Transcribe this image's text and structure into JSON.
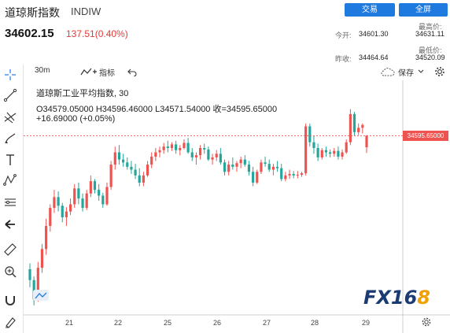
{
  "header": {
    "name": "道琼斯指数",
    "code": "INDIW",
    "price": "34602.15",
    "change": "137.51(0.40%)",
    "buttons": {
      "trade": "交易",
      "fullscreen": "全屏"
    },
    "stats": {
      "open_label": "今开:",
      "open_value": "34601.30",
      "prev_close_label": "昨收:",
      "prev_close_value": "34464.64",
      "high_label": "最高价:",
      "high_value": "34631.11",
      "low_label": "最低价:",
      "low_value": "34520.09"
    }
  },
  "toolbar": {
    "interval": "30m",
    "indicators_label": "指标",
    "save_label": "保存"
  },
  "chart_data": {
    "type": "candlestick",
    "title": "道琼斯工业平均指数, 30",
    "ohlc_line": "O34579.05000  H34596.46000  L34571.54000  收=34595.65000",
    "change_line": "+16.69000 (+0.05%)",
    "last_price_label": "34595.65000",
    "x_tick_labels": [
      "21",
      "22",
      "25",
      "26",
      "27",
      "28",
      "29"
    ],
    "colors": {
      "up": "#ef5350",
      "down": "#26a69a",
      "axis": "#999999"
    },
    "candles": [
      [
        34410,
        34418,
        34385,
        34395
      ],
      [
        34395,
        34400,
        34360,
        34368
      ],
      [
        34368,
        34420,
        34365,
        34412
      ],
      [
        34412,
        34445,
        34405,
        34438
      ],
      [
        34438,
        34480,
        34430,
        34470
      ],
      [
        34470,
        34500,
        34462,
        34495
      ],
      [
        34495,
        34520,
        34488,
        34510
      ],
      [
        34510,
        34518,
        34490,
        34498
      ],
      [
        34498,
        34502,
        34475,
        34482
      ],
      [
        34482,
        34496,
        34470,
        34490
      ],
      [
        34490,
        34508,
        34485,
        34500
      ],
      [
        34500,
        34528,
        34495,
        34522
      ],
      [
        34522,
        34530,
        34500,
        34508
      ],
      [
        34508,
        34515,
        34490,
        34495
      ],
      [
        34495,
        34520,
        34492,
        34515
      ],
      [
        34515,
        34540,
        34510,
        34532
      ],
      [
        34532,
        34535,
        34515,
        34520
      ],
      [
        34520,
        34528,
        34505,
        34512
      ],
      [
        34512,
        34516,
        34495,
        34500
      ],
      [
        34500,
        34530,
        34498,
        34524
      ],
      [
        34524,
        34560,
        34520,
        34555
      ],
      [
        34555,
        34580,
        34548,
        34572
      ],
      [
        34572,
        34582,
        34555,
        34562
      ],
      [
        34562,
        34570,
        34552,
        34558
      ],
      [
        34558,
        34565,
        34548,
        34552
      ],
      [
        34552,
        34560,
        34542,
        34548
      ],
      [
        34548,
        34556,
        34535,
        34540
      ],
      [
        34540,
        34550,
        34525,
        34530
      ],
      [
        34530,
        34545,
        34525,
        34540
      ],
      [
        34540,
        34560,
        34538,
        34555
      ],
      [
        34555,
        34572,
        34550,
        34566
      ],
      [
        34566,
        34578,
        34560,
        34572
      ],
      [
        34572,
        34580,
        34565,
        34575
      ],
      [
        34575,
        34585,
        34570,
        34580
      ],
      [
        34580,
        34588,
        34572,
        34578
      ],
      [
        34578,
        34586,
        34574,
        34583
      ],
      [
        34583,
        34588,
        34570,
        34575
      ],
      [
        34575,
        34582,
        34568,
        34578
      ],
      [
        34578,
        34590,
        34576,
        34585
      ],
      [
        34585,
        34592,
        34570,
        34572
      ],
      [
        34572,
        34578,
        34560,
        34565
      ],
      [
        34565,
        34572,
        34555,
        34568
      ],
      [
        34568,
        34582,
        34562,
        34578
      ],
      [
        34578,
        34584,
        34570,
        34576
      ],
      [
        34576,
        34580,
        34560,
        34562
      ],
      [
        34562,
        34570,
        34555,
        34565
      ],
      [
        34565,
        34575,
        34560,
        34570
      ],
      [
        34570,
        34578,
        34555,
        34558
      ],
      [
        34558,
        34562,
        34540,
        34545
      ],
      [
        34545,
        34560,
        34540,
        34555
      ],
      [
        34555,
        34565,
        34548,
        34552
      ],
      [
        34552,
        34560,
        34545,
        34557
      ],
      [
        34557,
        34566,
        34550,
        34562
      ],
      [
        34562,
        34568,
        34552,
        34555
      ],
      [
        34555,
        34560,
        34540,
        34545
      ],
      [
        34545,
        34552,
        34525,
        34530
      ],
      [
        34530,
        34548,
        34528,
        34545
      ],
      [
        34545,
        34562,
        34542,
        34558
      ],
      [
        34558,
        34566,
        34552,
        34556
      ],
      [
        34556,
        34562,
        34545,
        34548
      ],
      [
        34548,
        34556,
        34540,
        34552
      ],
      [
        34552,
        34560,
        34545,
        34550
      ],
      [
        34550,
        34556,
        34532,
        34535
      ],
      [
        34535,
        34545,
        34532,
        34540
      ],
      [
        34540,
        34548,
        34535,
        34542
      ],
      [
        34542,
        34546,
        34536,
        34540
      ],
      [
        34540,
        34546,
        34536,
        34541
      ],
      [
        34541,
        34545,
        34538,
        34543
      ],
      [
        34543,
        34612,
        34540,
        34608
      ],
      [
        34608,
        34612,
        34580,
        34586
      ],
      [
        34586,
        34595,
        34570,
        34578
      ],
      [
        34578,
        34584,
        34560,
        34565
      ],
      [
        34565,
        34578,
        34562,
        34575
      ],
      [
        34575,
        34580,
        34566,
        34572
      ],
      [
        34572,
        34576,
        34565,
        34570
      ],
      [
        34570,
        34578,
        34566,
        34574
      ],
      [
        34574,
        34580,
        34562,
        34566
      ],
      [
        34566,
        34576,
        34562,
        34572
      ],
      [
        34572,
        34590,
        34570,
        34586
      ],
      [
        34586,
        34632,
        34582,
        34625
      ],
      [
        34625,
        34628,
        34595,
        34600
      ],
      [
        34600,
        34612,
        34596,
        34606
      ],
      [
        34606,
        34612,
        34598,
        34610
      ],
      [
        34579,
        34596,
        34571,
        34595
      ]
    ]
  },
  "watermark": {
    "main": "FX16",
    "accent": "8"
  }
}
